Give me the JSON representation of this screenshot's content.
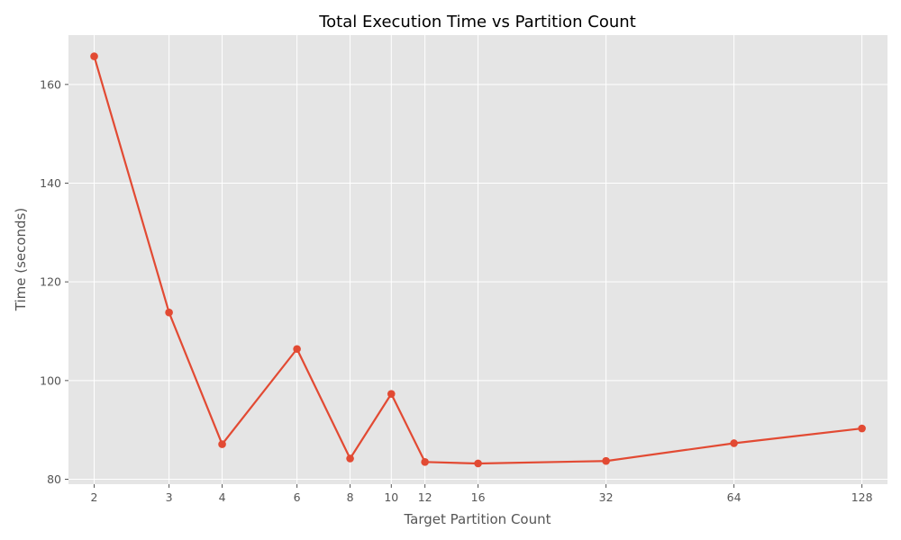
{
  "chart_data": {
    "type": "line",
    "title": "Total Execution Time vs Partition Count",
    "xlabel": "Target Partition Count",
    "ylabel": "Time (seconds)",
    "x_scale": "log2",
    "xlim": [
      1.74,
      147
    ],
    "ylim": [
      79,
      170
    ],
    "x_ticks": [
      2,
      3,
      4,
      6,
      8,
      10,
      12,
      16,
      32,
      64,
      128
    ],
    "x_tick_labels": [
      "2",
      "3",
      "4",
      "6",
      "8",
      "10",
      "12",
      "16",
      "32",
      "64",
      "128"
    ],
    "y_ticks": [
      80,
      100,
      120,
      140,
      160
    ],
    "y_tick_labels": [
      "80",
      "100",
      "120",
      "140",
      "160"
    ],
    "grid": true,
    "series": [
      {
        "color": "#e24a33",
        "x": [
          2,
          3,
          4,
          6,
          8,
          10,
          12,
          16,
          32,
          64,
          128
        ],
        "y": [
          165.7,
          113.8,
          87.1,
          106.4,
          84.2,
          97.3,
          83.5,
          83.2,
          83.7,
          87.3,
          90.3
        ]
      }
    ]
  },
  "colors": {
    "plot_background": "#e5e5e5",
    "grid": "#ffffff",
    "line": "#e24a33"
  }
}
